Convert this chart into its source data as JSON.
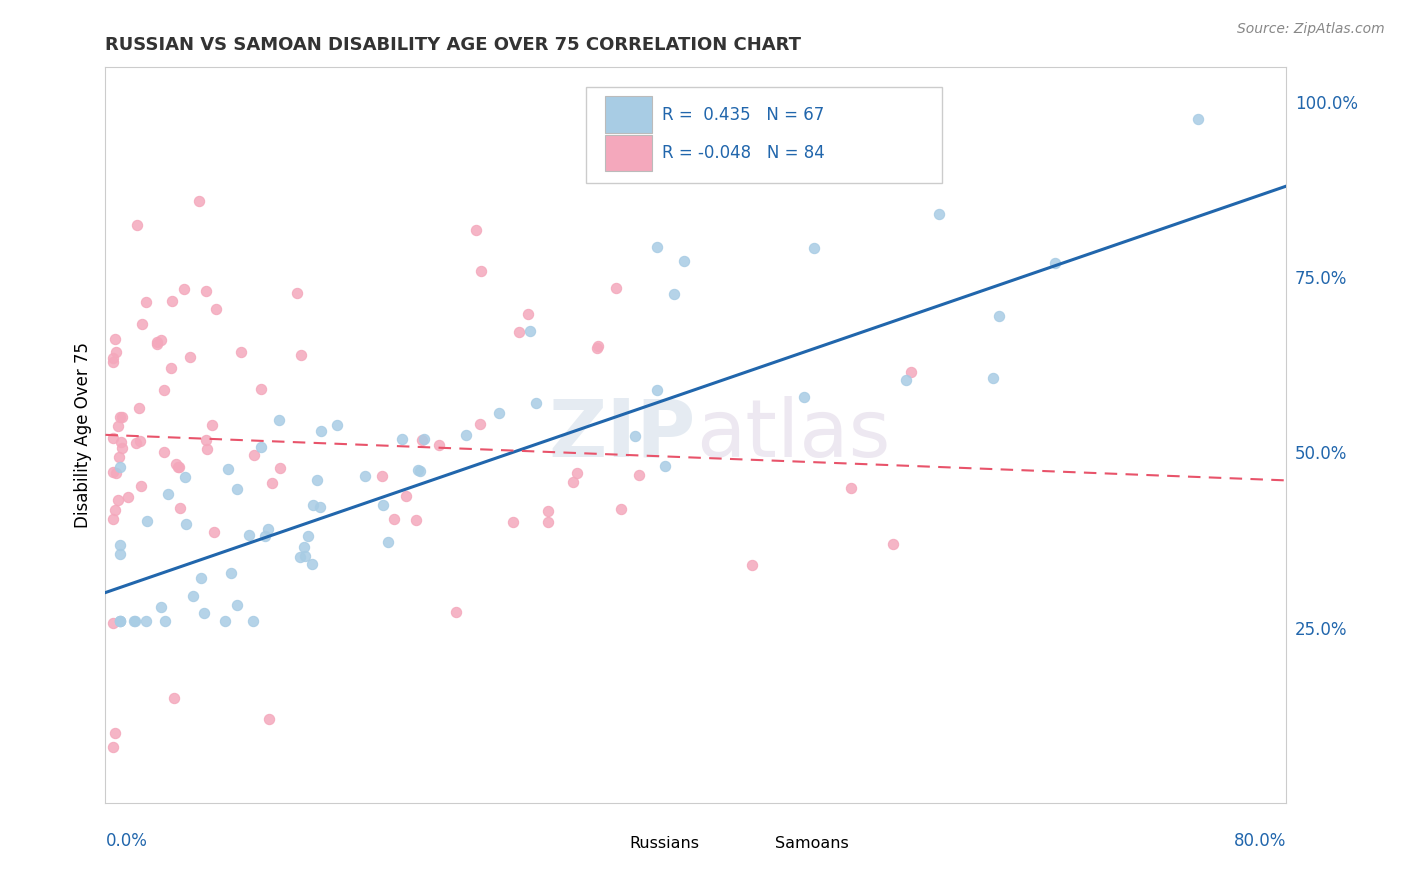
{
  "title": "RUSSIAN VS SAMOAN DISABILITY AGE OVER 75 CORRELATION CHART",
  "source": "Source: ZipAtlas.com",
  "ylabel": "Disability Age Over 75",
  "right_yticks": [
    "100.0%",
    "75.0%",
    "50.0%",
    "25.0%"
  ],
  "right_ytick_vals": [
    1.0,
    0.75,
    0.5,
    0.25
  ],
  "russian_R": 0.435,
  "russian_N": 67,
  "samoan_R": -0.048,
  "samoan_N": 84,
  "russian_color": "#a8cce4",
  "samoan_color": "#f4a8bc",
  "russian_line_color": "#2166ac",
  "samoan_line_color": "#e8536a",
  "watermark": "ZIPatlas",
  "xmin": 0.0,
  "xmax": 0.8,
  "ymin": 0.0,
  "ymax": 1.05,
  "russian_line_y0": 0.3,
  "russian_line_y1": 0.88,
  "samoan_line_y0": 0.525,
  "samoan_line_y1": 0.46
}
